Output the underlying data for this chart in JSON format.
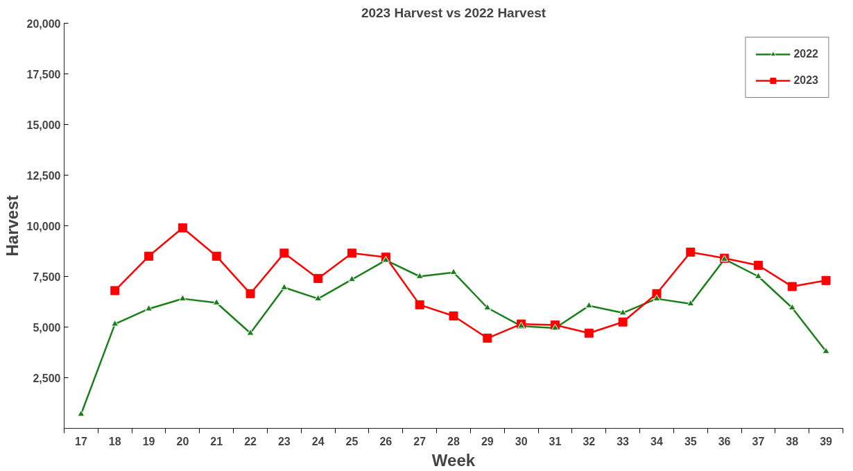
{
  "chart_data": {
    "type": "line",
    "title": "2023 Harvest vs 2022 Harvest",
    "xlabel": "Week",
    "ylabel": "Harvest",
    "categories": [
      "17",
      "18",
      "19",
      "20",
      "21",
      "22",
      "23",
      "24",
      "25",
      "26",
      "27",
      "28",
      "29",
      "30",
      "31",
      "32",
      "33",
      "34",
      "35",
      "36",
      "37",
      "38",
      "39"
    ],
    "series": [
      {
        "name": "2022",
        "color": "#1a7f1a",
        "marker": "triangle",
        "values": [
          700,
          5150,
          5900,
          6400,
          6200,
          4700,
          6950,
          6400,
          7350,
          8300,
          7500,
          7700,
          5950,
          5050,
          4950,
          6050,
          5700,
          6400,
          6150,
          8350,
          7500,
          5950,
          3800
        ]
      },
      {
        "name": "2023",
        "color": "#ff0000",
        "marker": "square",
        "values": [
          null,
          6800,
          8500,
          9900,
          8500,
          6650,
          8650,
          7400,
          8650,
          8450,
          6100,
          5550,
          4450,
          5150,
          5100,
          4700,
          5250,
          6650,
          8700,
          8400,
          8050,
          7000,
          7300
        ]
      }
    ],
    "ylim": [
      0,
      20000
    ],
    "yticks": [
      {
        "value": 2500,
        "label": "2,500"
      },
      {
        "value": 5000,
        "label": "5,000"
      },
      {
        "value": 7500,
        "label": "7,500"
      },
      {
        "value": 10000,
        "label": "10,000"
      },
      {
        "value": 12500,
        "label": "12,500"
      },
      {
        "value": 15000,
        "label": "15,000"
      },
      {
        "value": 17500,
        "label": "17,500"
      },
      {
        "value": 20000,
        "label": "20,000"
      }
    ],
    "grid": false,
    "legend": "top right",
    "line_style": "solid"
  }
}
